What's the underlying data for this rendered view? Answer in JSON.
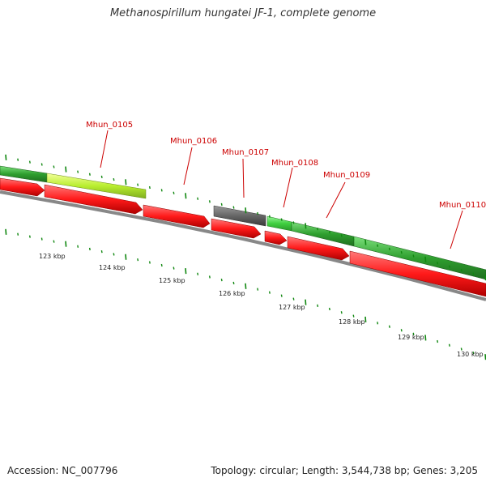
{
  "title": "Methanospirillum hungatei JF-1, complete genome",
  "footer": {
    "accession": "Accession: NC_007796",
    "summary": "Topology: circular; Length: 3,544,738 bp; Genes: 3,205"
  },
  "colors": {
    "cds": "#ff0000",
    "gene": "#2fa52f",
    "gene_light": "#3fcf3f",
    "gene_yellow": "#b9ee2f",
    "pseudo": "#666666",
    "backbone": "#888888",
    "ticks": "#118811",
    "labels": "#cc0000"
  },
  "gene_labels": [
    "Mhun_0105",
    "Mhun_0106",
    "Mhun_0107",
    "Mhun_0108",
    "Mhun_0109",
    "Mhun_0110"
  ],
  "scale_labels": [
    "123 kbp",
    "124 kbp",
    "125 kbp",
    "126 kbp",
    "127 kbp",
    "128 kbp",
    "129 kbp",
    "130 kbp"
  ]
}
